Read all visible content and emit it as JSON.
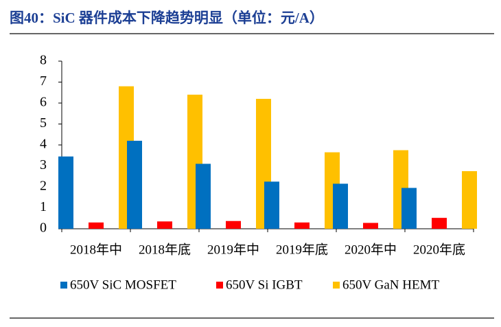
{
  "chart_data": {
    "type": "bar",
    "title": "图40：SiC 器件成本下降趋势明显（单位：元/A）",
    "categories": [
      "2018年中",
      "2018年底",
      "2019年中",
      "2019年底",
      "2020年中",
      "2020年底"
    ],
    "series": [
      {
        "name": "650V SiC MOSFET",
        "color": "#0070c0",
        "values": [
          3.45,
          4.2,
          3.1,
          2.25,
          2.15,
          1.95
        ]
      },
      {
        "name": "650V Si IGBT",
        "color": "#ff0000",
        "values": [
          0.3,
          0.35,
          0.37,
          0.3,
          0.28,
          0.52
        ]
      },
      {
        "name": "650V GaN HEMT",
        "color": "#ffc000",
        "values": [
          6.8,
          6.4,
          6.2,
          3.65,
          3.75,
          2.75
        ]
      }
    ],
    "ylim": [
      0,
      8
    ],
    "yticks": [
      0,
      1,
      2,
      3,
      4,
      5,
      6,
      7,
      8
    ],
    "grid": false
  }
}
